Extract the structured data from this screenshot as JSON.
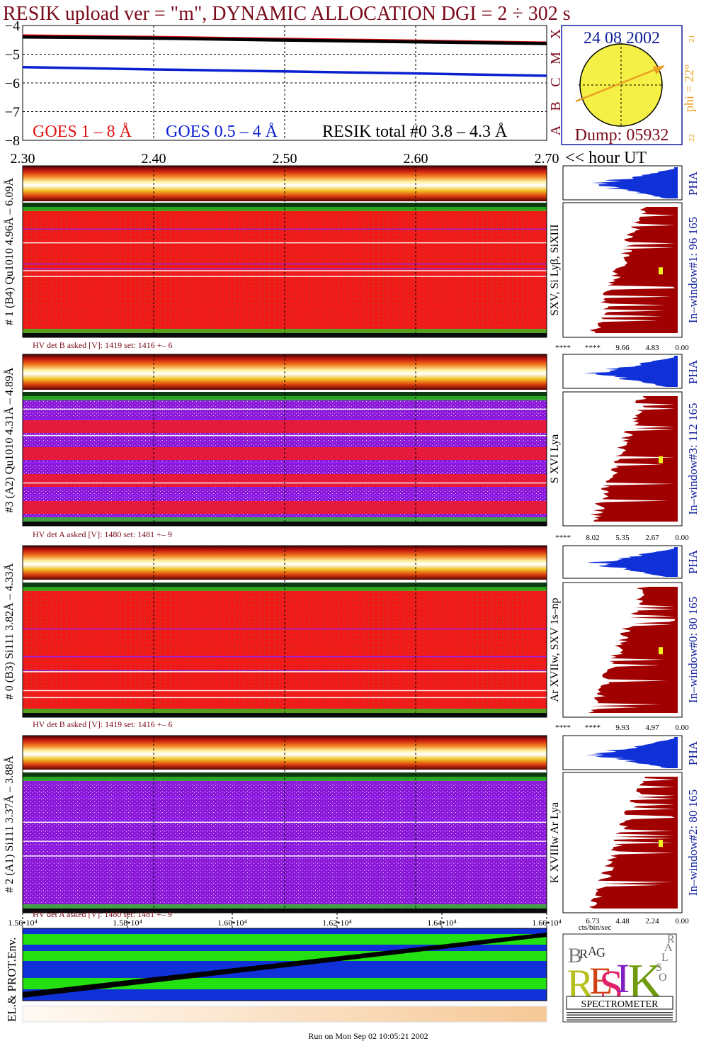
{
  "title": "RESIK upload ver = \"m\", DYNAMIC ALLOCATION  DGI =   2 ÷ 302 s",
  "date": "24 08 2002",
  "dump": "Dump: 05932",
  "phi": "phi = 22°",
  "sun_small": [
    "21",
    "22"
  ],
  "class_letters": [
    "X",
    "M",
    "C",
    "B",
    "A"
  ],
  "goes_legend": [
    "GOES 1 – 8 Å",
    "GOES 0.5 – 4 Å",
    "RESIK total #0  3.8 – 4.3 Å"
  ],
  "ut_label": "<< hour UT",
  "footer": "Run on Mon Sep 02 10:05:21 2002",
  "env_label": "EL.& PROT.Env.",
  "pha_label": "PHA",
  "pha_axis_unit": "cts/bin/sec",
  "logo_text": [
    "B",
    "R",
    "A",
    "G",
    "R",
    "E",
    "S",
    "I",
    "K",
    "S",
    "O",
    "L",
    "A",
    "R"
  ],
  "logo_caption": "SPECTROMETER",
  "colors": {
    "title": "#7a0a1a",
    "goes_long": "#e01010",
    "goes_short": "#0a1fd0",
    "sun": "#f5f046",
    "orange": "#e8a020",
    "navy": "#10209a",
    "darkred": "#a00000",
    "green": "#22e011",
    "blue": "#1030d8"
  },
  "chart_data": [
    {
      "type": "line",
      "title": "GOES / RESIK light curves",
      "x_label": "hour UT",
      "x_ticks": [
        "2.30",
        "2.40",
        "2.50",
        "2.60",
        "2.70"
      ],
      "xlim": [
        2.3,
        2.7
      ],
      "y_ticks": [
        "−4",
        "−5",
        "−6",
        "−7",
        "−8"
      ],
      "ylim": [
        -8,
        -4
      ],
      "series": [
        {
          "name": "GOES 1 – 8 Å",
          "color": "#e01010",
          "x": [
            2.3,
            2.4,
            2.5,
            2.6,
            2.7
          ],
          "y": [
            -4.35,
            -4.4,
            -4.47,
            -4.53,
            -4.6
          ]
        },
        {
          "name": "RESIK total #0  3.8 – 4.3 Å",
          "color": "#000000",
          "x": [
            2.3,
            2.4,
            2.5,
            2.6,
            2.7
          ],
          "y": [
            -4.4,
            -4.44,
            -4.51,
            -4.57,
            -4.63
          ]
        },
        {
          "name": "GOES 0.5 – 4 Å",
          "color": "#0a1fd0",
          "x": [
            2.3,
            2.4,
            2.5,
            2.6,
            2.7
          ],
          "y": [
            -5.45,
            -5.53,
            -5.6,
            -5.67,
            -5.75
          ]
        }
      ]
    },
    {
      "type": "heatmap",
      "panels": [
        {
          "left_label": "# 1 (B4) Qu1010 4.96Å – 6.09Å",
          "right_label": "SXV, Si Lyβ, SiXIII",
          "window_label": "In–window#1:   96 165",
          "hv_text": "HV det B asked [V]:  1419 set:  1416  +–    6",
          "pha_ticks": [
            "****",
            "****",
            "9.66",
            "4.83",
            "0.00"
          ],
          "bg": "#f01818"
        },
        {
          "left_label": "#3 (A2) Qu1010  4.31Å – 4.89Å",
          "right_label": "S XVI Lya",
          "window_label": "In–window#3:  112 165",
          "hv_text": "HV det A asked [V]:  1480 set:  1481  +–    9",
          "pha_ticks": [
            "****",
            "8.02",
            "5.35",
            "2.67",
            "0.00"
          ],
          "bg": "#e0207a"
        },
        {
          "left_label": "# 0 (B3) Si111  3.82Å – 4.33Å",
          "right_label": "Ar XVIIw, SXV 1s–np",
          "window_label": "In–window#0:   80 165",
          "hv_text": "HV det B asked [V]:  1419 set:  1416  +–    6",
          "pha_ticks": [
            "****",
            "****",
            "9.93",
            "4.97",
            "0.00"
          ],
          "bg": "#f01818"
        },
        {
          "left_label": "# 2 (A1) Si111  3.37Å –  3.88Å",
          "right_label": "K XVIIIw  Ar Lya",
          "window_label": "In–window#2:   80 165",
          "hv_text": "HV det A asked [V]:  1480 set:  1481  +–    9",
          "pha_ticks": [
            "6.73",
            "4.48",
            "2.24",
            "0.00"
          ],
          "bg": "#a020d8"
        }
      ]
    },
    {
      "type": "area",
      "x_ticks": [
        "1.56•10⁴",
        "1.58•10⁴",
        "1.60•10⁴",
        "1.62•10⁴",
        "1.64•10⁴",
        "1.66•10⁴"
      ],
      "xlim": [
        15600,
        16600
      ]
    }
  ]
}
